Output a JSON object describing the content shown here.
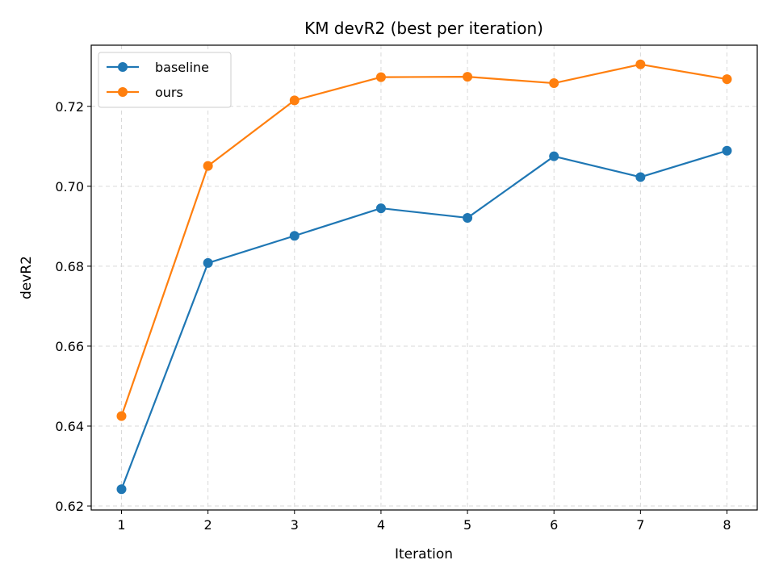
{
  "chart_data": {
    "type": "line",
    "title": "KM devR2 (best per iteration)",
    "xlabel": "Iteration",
    "ylabel": "devR2",
    "x": [
      1,
      2,
      3,
      4,
      5,
      6,
      7,
      8
    ],
    "xticks": [
      "1",
      "2",
      "3",
      "4",
      "5",
      "6",
      "7",
      "8"
    ],
    "xlim": [
      0.65,
      8.35
    ],
    "ylim": [
      0.619,
      0.7353
    ],
    "yticks": [
      0.62,
      0.64,
      0.66,
      0.68,
      0.7,
      0.72
    ],
    "ytick_labels": [
      "0.62",
      "0.64",
      "0.66",
      "0.68",
      "0.70",
      "0.72"
    ],
    "grid": true,
    "legend_position": "upper-left",
    "series": [
      {
        "name": "baseline",
        "color": "#1f77b4",
        "marker": "circle",
        "values": [
          0.6242,
          0.6808,
          0.6876,
          0.6945,
          0.6921,
          0.7075,
          0.7023,
          0.7089
        ]
      },
      {
        "name": "ours",
        "color": "#ff7f0e",
        "marker": "circle",
        "values": [
          0.6425,
          0.7051,
          0.7215,
          0.7273,
          0.7274,
          0.7258,
          0.7305,
          0.7268
        ]
      }
    ]
  }
}
